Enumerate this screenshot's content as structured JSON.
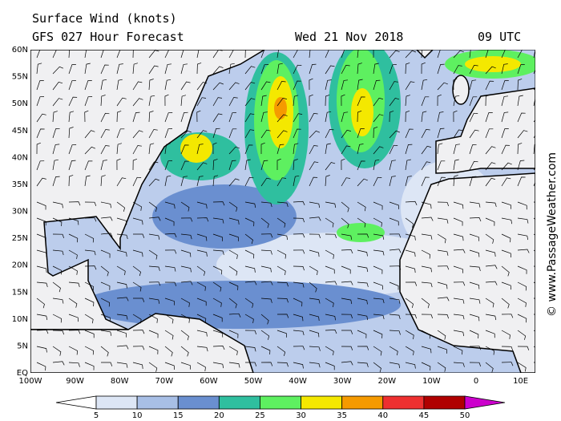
{
  "header": {
    "title": "Surface Wind (knots)",
    "subtitle": "GFS 027 Hour Forecast",
    "date": "Wed 21 Nov 2018",
    "time": "09 UTC"
  },
  "lat_labels": [
    "60N",
    "55N",
    "50N",
    "45N",
    "40N",
    "35N",
    "30N",
    "25N",
    "20N",
    "15N",
    "10N",
    "5N",
    "EQ"
  ],
  "lon_labels": [
    "100W",
    "90W",
    "80W",
    "70W",
    "60W",
    "50W",
    "40W",
    "30W",
    "20W",
    "10W",
    "0",
    "10E"
  ],
  "colorbar": {
    "ticks": [
      5,
      10,
      15,
      20,
      25,
      30,
      35,
      40,
      45,
      50
    ],
    "colors": [
      "#ffffff",
      "#dde6f5",
      "#a8bfe6",
      "#6a8fd0",
      "#2fbf9f",
      "#5ef060",
      "#f4e800",
      "#f59a00",
      "#ee3030",
      "#b00000",
      "#cc00cc"
    ]
  },
  "credit": "© www.PassageWeather.com"
}
